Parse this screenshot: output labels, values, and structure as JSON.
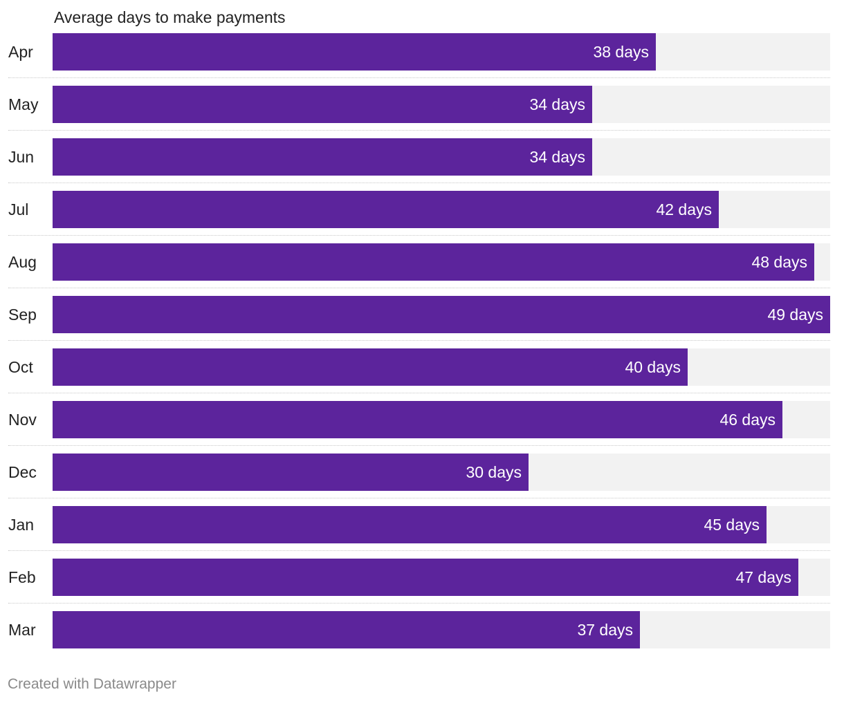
{
  "chart_data": {
    "type": "bar",
    "orientation": "horizontal",
    "title": "Average days to make payments",
    "xlabel": "",
    "ylabel": "",
    "xlim": [
      0,
      49
    ],
    "grid": false,
    "unit_suffix": " days",
    "categories": [
      "Apr",
      "May",
      "Jun",
      "Jul",
      "Aug",
      "Sep",
      "Oct",
      "Nov",
      "Dec",
      "Jan",
      "Feb",
      "Mar"
    ],
    "values": [
      38,
      34,
      34,
      42,
      48,
      49,
      40,
      46,
      30,
      45,
      47,
      37
    ],
    "value_labels": [
      "38 days",
      "34 days",
      "34 days",
      "42 days",
      "48 days",
      "49 days",
      "40 days",
      "46 days",
      "30 days",
      "45 days",
      "47 days",
      "37 days"
    ],
    "colors": {
      "bar": "#5c249c",
      "track": "#f2f2f2",
      "value_text": "#ffffff"
    }
  },
  "footer": {
    "credit": "Created with Datawrapper"
  }
}
